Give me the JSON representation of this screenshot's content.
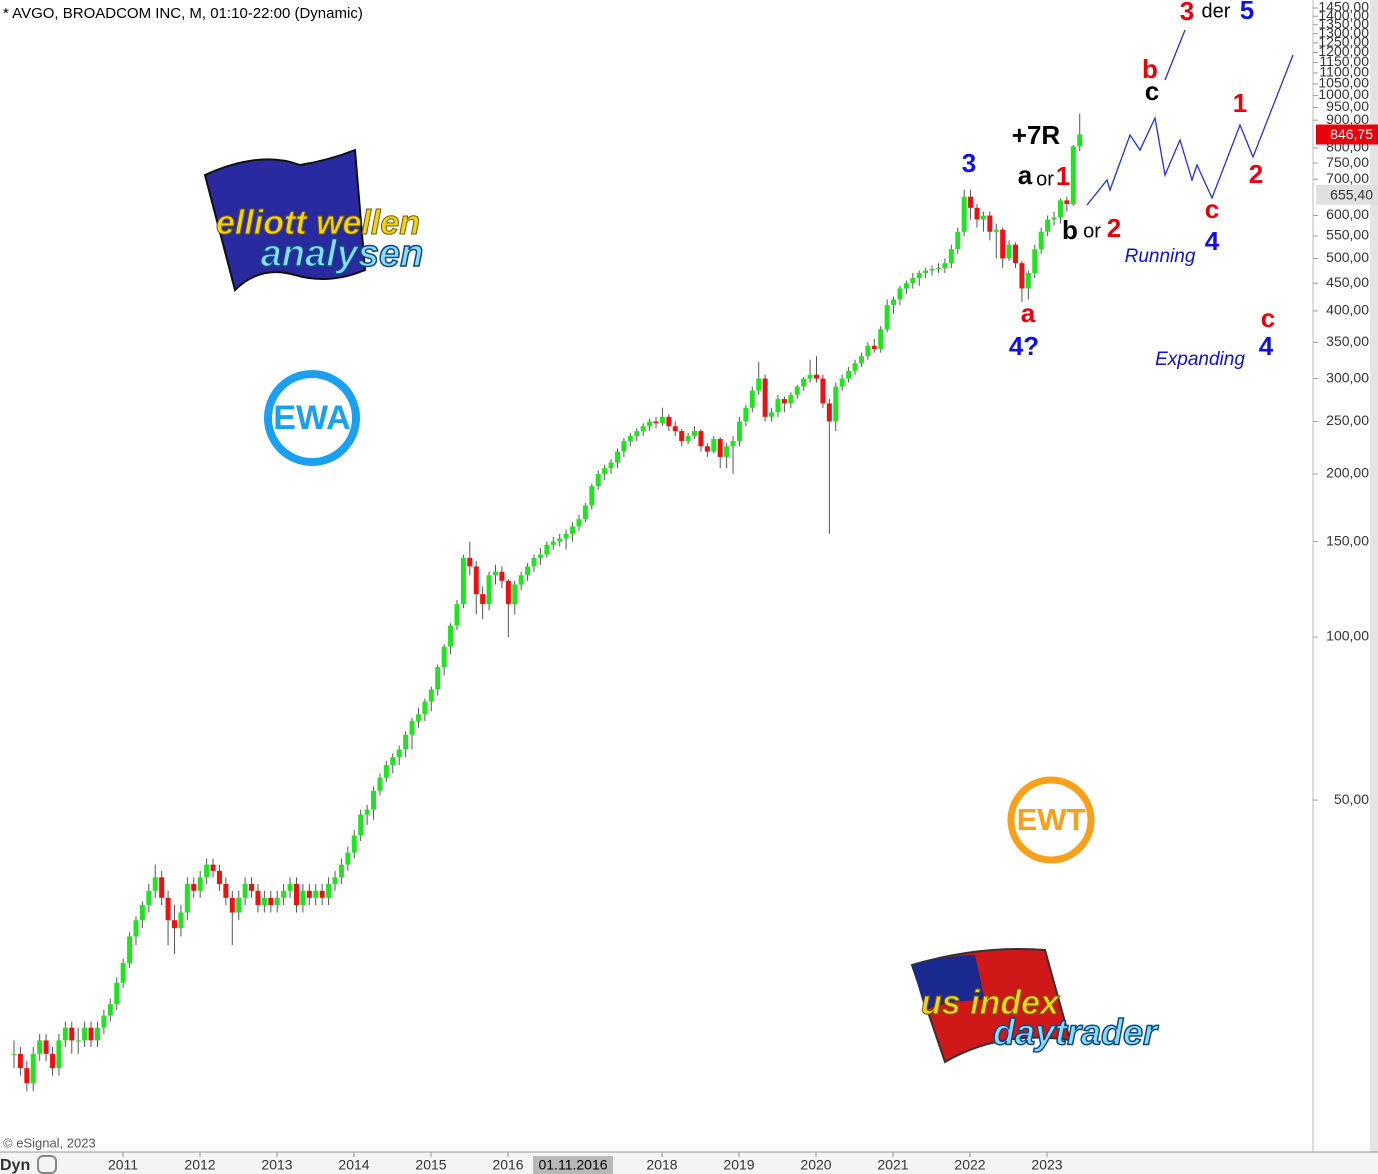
{
  "chart_data": {
    "type": "candlestick",
    "title": "* AVGO, BROADCOM INC, M, 01:10-22:00 (Dynamic)",
    "source": "© eSignal, 2023",
    "mode_label": "Dyn",
    "cursor_label": "01.11.2016",
    "log_scale": true,
    "up_color": "#1ee61e",
    "down_color": "#ee1111",
    "ylim": [
      11.2,
      1500
    ],
    "yticks": [
      {
        "value": 50,
        "label": "50,00"
      },
      {
        "value": 100,
        "label": "100,00"
      },
      {
        "value": 150,
        "label": "150,00"
      },
      {
        "value": 200,
        "label": "200,00"
      },
      {
        "value": 250,
        "label": "250,00"
      },
      {
        "value": 300,
        "label": "300,00"
      },
      {
        "value": 350,
        "label": "350,00"
      },
      {
        "value": 400,
        "label": "400,00"
      },
      {
        "value": 450,
        "label": "450,00"
      },
      {
        "value": 500,
        "label": "500,00"
      },
      {
        "value": 550,
        "label": "550,00"
      },
      {
        "value": 600,
        "label": "600,00"
      },
      {
        "value": 700,
        "label": "700,00"
      },
      {
        "value": 750,
        "label": "750,00"
      },
      {
        "value": 800,
        "label": "800,00"
      },
      {
        "value": 900,
        "label": "900,00"
      },
      {
        "value": 950,
        "label": "950,00"
      },
      {
        "value": 1000,
        "label": "1000,00"
      },
      {
        "value": 1050,
        "label": "1050,00"
      },
      {
        "value": 1100,
        "label": "1100,00"
      },
      {
        "value": 1150,
        "label": "1150,00"
      },
      {
        "value": 1200,
        "label": "1200,00"
      },
      {
        "value": 1250,
        "label": "1250,00"
      },
      {
        "value": 1300,
        "label": "1300,00"
      },
      {
        "value": 1350,
        "label": "1350,00"
      },
      {
        "value": 1400,
        "label": "1400,00"
      },
      {
        "value": 1450,
        "label": "1450,00"
      }
    ],
    "xticks": [
      2011,
      2012,
      2013,
      2014,
      2015,
      2016,
      2018,
      2019,
      2020,
      2021,
      2022,
      2023
    ],
    "price_labels": [
      {
        "value": 846.75,
        "label": "846,75",
        "color": "#e8000b"
      },
      {
        "value": 655.4,
        "label": "655,40",
        "color": "#e0e0e0"
      }
    ],
    "candles": [
      [
        17,
        18,
        16,
        17
      ],
      [
        17,
        17.5,
        15.5,
        16
      ],
      [
        16,
        16.5,
        14.5,
        15
      ],
      [
        15,
        17.5,
        14.5,
        17
      ],
      [
        17,
        18.5,
        16.5,
        18
      ],
      [
        18,
        18.5,
        16.5,
        17
      ],
      [
        17,
        17.5,
        15.5,
        16
      ],
      [
        16,
        18.5,
        15.5,
        18
      ],
      [
        18,
        19.5,
        17.5,
        19
      ],
      [
        19,
        19.5,
        17,
        18
      ],
      [
        18,
        19,
        17,
        18
      ],
      [
        18,
        19.5,
        17.5,
        19
      ],
      [
        19,
        19.5,
        17.5,
        18
      ],
      [
        18,
        19.5,
        17.5,
        19
      ],
      [
        19,
        20.5,
        18.5,
        20
      ],
      [
        20,
        21.5,
        19.5,
        21
      ],
      [
        21,
        23.5,
        20.5,
        23
      ],
      [
        23,
        25.5,
        22.5,
        25
      ],
      [
        25,
        28.5,
        24.5,
        28
      ],
      [
        28,
        30.5,
        27,
        30
      ],
      [
        30,
        32.5,
        29,
        32
      ],
      [
        32,
        35,
        31,
        34
      ],
      [
        34,
        38,
        33,
        36
      ],
      [
        36,
        37,
        32,
        33
      ],
      [
        33,
        34,
        27,
        30
      ],
      [
        30,
        32,
        26,
        29
      ],
      [
        29,
        32,
        28,
        31
      ],
      [
        31,
        36,
        30,
        35
      ],
      [
        35,
        36,
        33,
        34
      ],
      [
        34,
        37,
        33,
        36
      ],
      [
        36,
        39,
        35,
        38
      ],
      [
        38,
        39,
        36,
        37
      ],
      [
        37,
        38,
        34,
        35
      ],
      [
        35,
        36,
        32,
        33
      ],
      [
        33,
        34,
        27,
        31
      ],
      [
        31,
        34,
        30,
        33
      ],
      [
        33,
        36,
        32,
        35
      ],
      [
        35,
        36,
        33,
        34
      ],
      [
        34,
        35,
        31,
        32
      ],
      [
        32,
        34,
        31,
        33
      ],
      [
        33,
        34,
        31,
        32
      ],
      [
        32,
        34,
        31,
        33
      ],
      [
        33,
        35,
        32,
        34
      ],
      [
        34,
        36,
        33,
        35
      ],
      [
        35,
        36,
        31,
        32
      ],
      [
        32,
        35,
        31,
        34
      ],
      [
        34,
        35,
        32,
        33
      ],
      [
        33,
        35,
        32,
        34
      ],
      [
        34,
        35,
        32,
        33
      ],
      [
        33,
        36,
        32,
        35
      ],
      [
        35,
        37,
        34,
        36
      ],
      [
        36,
        39,
        35,
        38
      ],
      [
        38,
        41,
        37,
        40
      ],
      [
        40,
        44,
        39,
        43
      ],
      [
        43,
        48,
        42,
        47
      ],
      [
        47,
        49,
        45,
        48
      ],
      [
        48,
        53,
        46,
        52
      ],
      [
        52,
        56,
        51,
        55
      ],
      [
        55,
        59,
        54,
        58
      ],
      [
        58,
        61,
        56,
        60
      ],
      [
        60,
        63,
        58,
        62
      ],
      [
        62,
        67,
        60,
        66
      ],
      [
        66,
        71,
        62,
        70
      ],
      [
        70,
        74,
        68,
        72
      ],
      [
        72,
        77,
        70,
        76
      ],
      [
        76,
        81,
        73,
        80
      ],
      [
        80,
        89,
        78,
        88
      ],
      [
        88,
        97,
        85,
        96
      ],
      [
        96,
        106,
        93,
        105
      ],
      [
        105,
        117,
        103,
        115
      ],
      [
        115,
        142,
        113,
        140
      ],
      [
        140,
        150,
        130,
        135
      ],
      [
        135,
        138,
        110,
        120
      ],
      [
        120,
        124,
        108,
        115
      ],
      [
        115,
        132,
        112,
        130
      ],
      [
        130,
        136,
        125,
        132
      ],
      [
        132,
        135,
        123,
        127
      ],
      [
        127,
        128,
        100,
        115
      ],
      [
        115,
        127,
        110,
        125
      ],
      [
        125,
        132,
        122,
        130
      ],
      [
        130,
        137,
        127,
        135
      ],
      [
        135,
        142,
        132,
        140
      ],
      [
        140,
        146,
        136,
        142
      ],
      [
        142,
        150,
        140,
        148
      ],
      [
        148,
        153,
        145,
        150
      ],
      [
        150,
        155,
        147,
        152
      ],
      [
        152,
        158,
        145,
        155
      ],
      [
        155,
        163,
        150,
        160
      ],
      [
        160,
        168,
        157,
        165
      ],
      [
        165,
        177,
        163,
        175
      ],
      [
        175,
        192,
        172,
        190
      ],
      [
        190,
        203,
        187,
        200
      ],
      [
        200,
        208,
        195,
        205
      ],
      [
        205,
        213,
        200,
        210
      ],
      [
        210,
        223,
        205,
        220
      ],
      [
        220,
        233,
        215,
        230
      ],
      [
        230,
        238,
        225,
        235
      ],
      [
        235,
        243,
        230,
        240
      ],
      [
        240,
        248,
        235,
        245
      ],
      [
        245,
        253,
        240,
        250
      ],
      [
        250,
        255,
        243,
        248
      ],
      [
        248,
        265,
        245,
        255
      ],
      [
        255,
        258,
        240,
        245
      ],
      [
        245,
        250,
        235,
        240
      ],
      [
        240,
        242,
        225,
        230
      ],
      [
        230,
        238,
        227,
        235
      ],
      [
        235,
        245,
        232,
        240
      ],
      [
        240,
        242,
        220,
        225
      ],
      [
        225,
        228,
        215,
        220
      ],
      [
        220,
        235,
        218,
        232
      ],
      [
        232,
        234,
        205,
        215
      ],
      [
        215,
        228,
        205,
        225
      ],
      [
        225,
        235,
        200,
        230
      ],
      [
        230,
        255,
        225,
        250
      ],
      [
        250,
        268,
        245,
        265
      ],
      [
        265,
        290,
        260,
        285
      ],
      [
        285,
        322,
        280,
        300
      ],
      [
        300,
        305,
        250,
        255
      ],
      [
        255,
        265,
        250,
        260
      ],
      [
        260,
        280,
        255,
        275
      ],
      [
        275,
        278,
        260,
        270
      ],
      [
        270,
        283,
        265,
        280
      ],
      [
        280,
        292,
        275,
        290
      ],
      [
        290,
        302,
        285,
        300
      ],
      [
        300,
        325,
        295,
        305
      ],
      [
        305,
        330,
        295,
        300
      ],
      [
        300,
        305,
        265,
        270
      ],
      [
        270,
        275,
        155,
        250
      ],
      [
        250,
        295,
        240,
        290
      ],
      [
        290,
        305,
        285,
        300
      ],
      [
        300,
        315,
        295,
        310
      ],
      [
        310,
        325,
        305,
        320
      ],
      [
        320,
        335,
        315,
        330
      ],
      [
        330,
        350,
        325,
        345
      ],
      [
        345,
        355,
        335,
        340
      ],
      [
        340,
        375,
        335,
        370
      ],
      [
        370,
        420,
        365,
        410
      ],
      [
        410,
        425,
        395,
        420
      ],
      [
        420,
        445,
        410,
        440
      ],
      [
        440,
        455,
        430,
        450
      ],
      [
        450,
        470,
        440,
        460
      ],
      [
        460,
        475,
        445,
        470
      ],
      [
        470,
        480,
        460,
        475
      ],
      [
        475,
        485,
        465,
        478
      ],
      [
        478,
        490,
        470,
        480
      ],
      [
        480,
        500,
        470,
        490
      ],
      [
        490,
        530,
        480,
        520
      ],
      [
        520,
        570,
        510,
        560
      ],
      [
        560,
        670,
        550,
        650
      ],
      [
        650,
        670,
        590,
        620
      ],
      [
        620,
        630,
        570,
        590
      ],
      [
        590,
        610,
        560,
        600
      ],
      [
        600,
        610,
        540,
        560
      ],
      [
        560,
        580,
        500,
        565
      ],
      [
        565,
        570,
        480,
        500
      ],
      [
        500,
        540,
        495,
        530
      ],
      [
        530,
        535,
        480,
        490
      ],
      [
        490,
        495,
        415,
        440
      ],
      [
        440,
        475,
        420,
        470
      ],
      [
        470,
        530,
        460,
        520
      ],
      [
        520,
        570,
        510,
        560
      ],
      [
        560,
        600,
        550,
        590
      ],
      [
        590,
        610,
        575,
        595
      ],
      [
        595,
        645,
        580,
        640
      ],
      [
        640,
        650,
        610,
        630
      ],
      [
        630,
        810,
        625,
        805
      ],
      [
        805,
        925,
        790,
        847
      ]
    ],
    "annotations": [
      "3",
      "der",
      "5",
      "b",
      "c",
      "1",
      "+7R",
      "3",
      "a",
      "or",
      "1",
      "2",
      "c",
      "b",
      "or",
      "2",
      "Running",
      "4",
      "a",
      "4?",
      "c",
      "4",
      "Expanding"
    ],
    "logos": {
      "elliott_top": "elliott wellen",
      "elliott_bottom": "analysen",
      "ewa": "EWA",
      "ewt": "EWT",
      "us_top": "us index",
      "us_bottom": "daytrader"
    }
  }
}
